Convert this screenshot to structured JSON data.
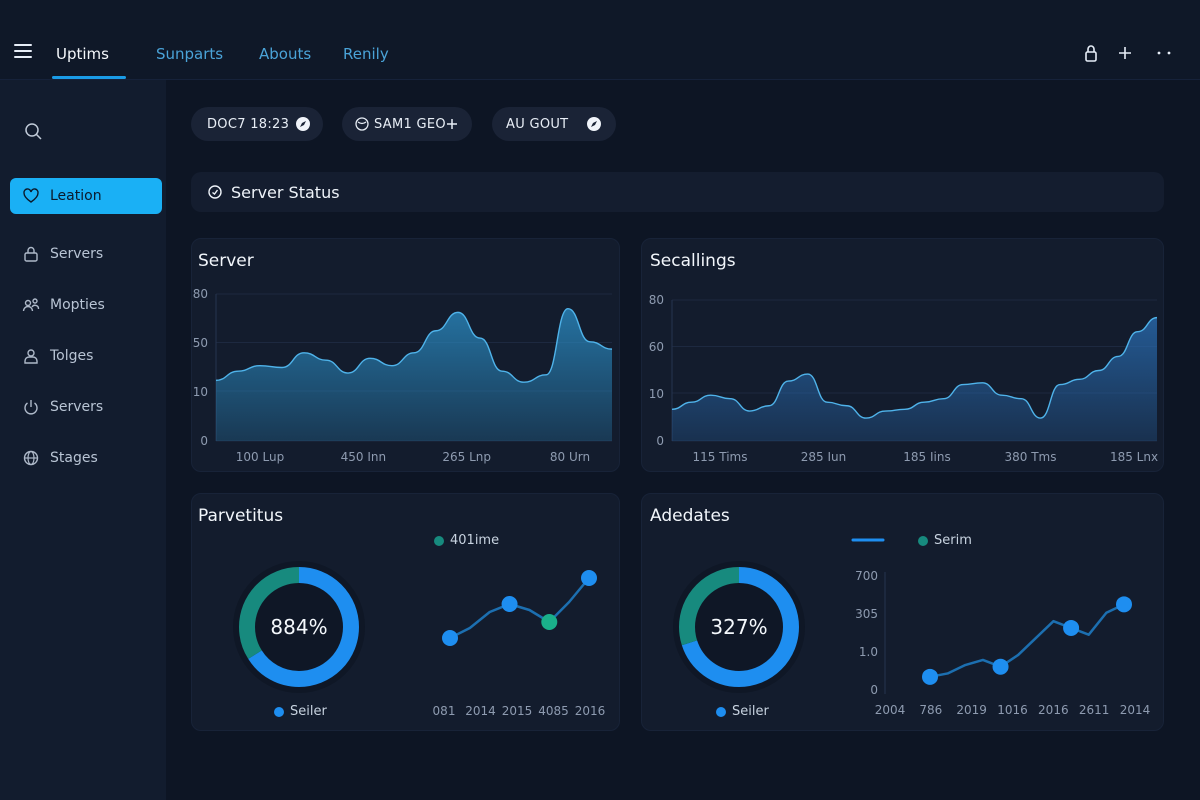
{
  "header": {
    "tabs": [
      {
        "label": "Uptims",
        "active": true
      },
      {
        "label": "Sunparts",
        "active": false
      },
      {
        "label": "Abouts",
        "active": false
      },
      {
        "label": "Renily",
        "active": false
      }
    ],
    "icons": [
      "lock-icon",
      "plus-icon",
      "more-icon"
    ]
  },
  "sidebar": {
    "items": [
      {
        "label": "Leation",
        "icon": "heart-icon",
        "active": true
      },
      {
        "label": "Servers",
        "icon": "lock-icon",
        "active": false
      },
      {
        "label": "Mopties",
        "icon": "users-icon",
        "active": false
      },
      {
        "label": "Tolges",
        "icon": "user-icon",
        "active": false
      },
      {
        "label": "Servers",
        "icon": "power-icon",
        "active": false
      },
      {
        "label": "Stages",
        "icon": "globe-icon",
        "active": false
      }
    ]
  },
  "chips": [
    {
      "label": "DOC7 18:23",
      "icon": "compass-icon"
    },
    {
      "label": "SAM1 GEO",
      "icon": "globe-icon"
    },
    {
      "label": "AU GOUT",
      "icon": "compass-icon"
    }
  ],
  "section": {
    "title": "Server Status"
  },
  "cards": {
    "server": {
      "title": "Server",
      "y_ticks": [
        "80",
        "50",
        "10",
        "0"
      ],
      "x_ticks": [
        "100 Lup",
        "450 Inn",
        "265 Lnp",
        "80 Urn"
      ]
    },
    "secallings": {
      "title": "Secallings",
      "y_ticks": [
        "80",
        "60",
        "10",
        "0"
      ],
      "x_ticks": [
        "115 Tims",
        "285 Iun",
        "185 Iins",
        "380 Tms",
        "185 Lnx"
      ]
    },
    "parvetitus": {
      "title": "Parvetitus",
      "donut_label": "884%",
      "donut_legend": "Seiler",
      "line_legend": "401ime",
      "x_ticks": [
        "081",
        "2014",
        "2015",
        "4085",
        "2016"
      ]
    },
    "adedates": {
      "title": "Adedates",
      "donut_label": "327%",
      "donut_legend": "Seiler",
      "line_legend": "Serim",
      "y_ticks": [
        "700",
        "305",
        "1.0",
        "0"
      ],
      "x_ticks": [
        "2004",
        "786",
        "2019",
        "1016",
        "2016",
        "2611",
        "2014"
      ]
    }
  },
  "chart_data": [
    {
      "type": "area",
      "title": "Server",
      "ylim": [
        0,
        80
      ],
      "x": [
        0,
        1,
        2,
        3,
        4,
        5,
        6,
        7,
        8,
        9,
        10,
        11,
        12,
        13,
        14,
        15,
        16,
        17,
        18
      ],
      "values": [
        33,
        38,
        41,
        40,
        48,
        44,
        37,
        45,
        41,
        48,
        60,
        70,
        56,
        38,
        32,
        36,
        72,
        54,
        50
      ],
      "x_tick_labels": [
        "100 Lup",
        "450 Inn",
        "265 Lnp",
        "80 Urn"
      ],
      "y_tick_labels": [
        "80",
        "50",
        "10",
        "0"
      ],
      "color": "#2b8fc8"
    },
    {
      "type": "area",
      "title": "Secallings",
      "ylim": [
        0,
        80
      ],
      "x": [
        0,
        1,
        2,
        3,
        4,
        5,
        6,
        7,
        8,
        9,
        10,
        11,
        12,
        13,
        14,
        15,
        16,
        17,
        18,
        19,
        20,
        21,
        22,
        23,
        24,
        25
      ],
      "values": [
        18,
        22,
        26,
        24,
        17,
        20,
        34,
        38,
        22,
        20,
        13,
        17,
        18,
        22,
        24,
        32,
        33,
        26,
        24,
        13,
        32,
        35,
        40,
        48,
        62,
        70
      ],
      "x_tick_labels": [
        "115 Tims",
        "285 Iun",
        "185 Iins",
        "380 Tms",
        "185 Lnx"
      ],
      "y_tick_labels": [
        "80",
        "60",
        "10",
        "0"
      ],
      "color": "#2a6fb6"
    },
    {
      "type": "pie",
      "title": "Parvetitus",
      "values": [
        66,
        34
      ],
      "colors": [
        "#1e8ef0",
        "#178a7e"
      ],
      "center_label": "884%"
    },
    {
      "type": "line",
      "title": "Parvetitus",
      "x": [
        0,
        1,
        2,
        3,
        4,
        5,
        6,
        7
      ],
      "values": [
        14,
        24,
        40,
        48,
        42,
        30,
        50,
        74
      ],
      "markers": [
        0,
        3,
        5,
        7
      ],
      "marker_colors": [
        "#1e8ef0",
        "#1e8ef0",
        "#1ab08a",
        "#1e8ef0"
      ],
      "x_tick_labels": [
        "081",
        "2014",
        "2015",
        "4085",
        "2016"
      ],
      "color": "#1c6fb0"
    },
    {
      "type": "pie",
      "title": "Adedates",
      "values": [
        70,
        30
      ],
      "colors": [
        "#1e8ef0",
        "#178a7e"
      ],
      "center_label": "327%"
    },
    {
      "type": "line",
      "title": "Adedates",
      "ylim": [
        0,
        700
      ],
      "x": [
        0,
        1,
        2,
        3,
        4,
        5,
        6,
        7,
        8,
        9,
        10,
        11
      ],
      "values": [
        90,
        110,
        160,
        190,
        150,
        220,
        320,
        420,
        380,
        340,
        470,
        520
      ],
      "markers": [
        0,
        4,
        8,
        11
      ],
      "x_tick_labels": [
        "2004",
        "786",
        "2019",
        "1016",
        "2016",
        "2611",
        "2014"
      ],
      "y_tick_labels": [
        "700",
        "305",
        "1.0",
        "0"
      ],
      "color": "#1c6fb0"
    }
  ]
}
